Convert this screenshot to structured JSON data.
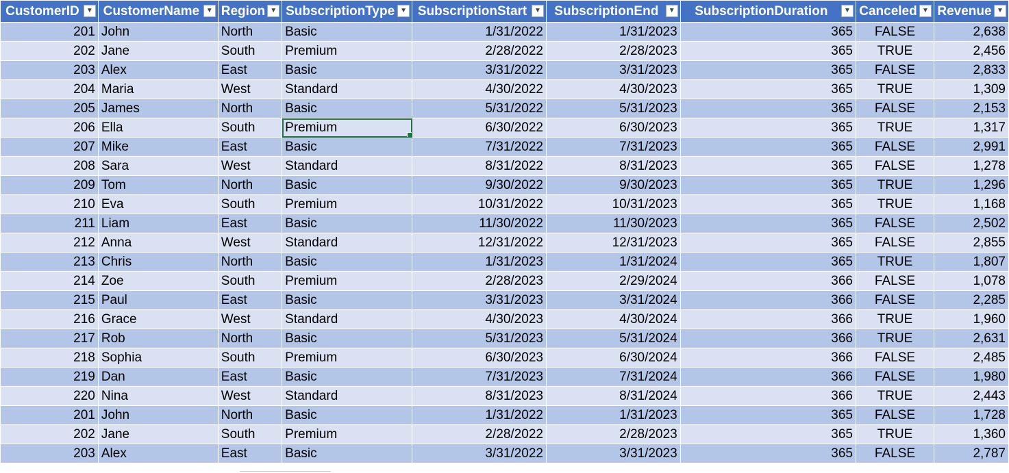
{
  "columns": [
    "CustomerID",
    "CustomerName",
    "Region",
    "SubscriptionType",
    "SubscriptionStart",
    "SubscriptionEnd",
    "SubscriptionDuration",
    "Canceled",
    "Revenue"
  ],
  "filter_icon": "dropdown-arrow-icon",
  "selected_cell": {
    "row": 5,
    "column": "SubscriptionType"
  },
  "colors": {
    "header_bg": "#4472c4",
    "header_text": "#ffffff",
    "band_dark": "#b4c6e7",
    "band_light": "#d9e1f2",
    "selection": "#217346"
  },
  "rows": [
    [
      "201",
      "John",
      "North",
      "Basic",
      "1/31/2022",
      "1/31/2023",
      "365",
      "FALSE",
      "2,638"
    ],
    [
      "202",
      "Jane",
      "South",
      "Premium",
      "2/28/2022",
      "2/28/2023",
      "365",
      "TRUE",
      "2,456"
    ],
    [
      "203",
      "Alex",
      "East",
      "Basic",
      "3/31/2022",
      "3/31/2023",
      "365",
      "FALSE",
      "2,833"
    ],
    [
      "204",
      "Maria",
      "West",
      "Standard",
      "4/30/2022",
      "4/30/2023",
      "365",
      "TRUE",
      "1,309"
    ],
    [
      "205",
      "James",
      "North",
      "Basic",
      "5/31/2022",
      "5/31/2023",
      "365",
      "FALSE",
      "2,153"
    ],
    [
      "206",
      "Ella",
      "South",
      "Premium",
      "6/30/2022",
      "6/30/2023",
      "365",
      "TRUE",
      "1,317"
    ],
    [
      "207",
      "Mike",
      "East",
      "Basic",
      "7/31/2022",
      "7/31/2023",
      "365",
      "FALSE",
      "2,991"
    ],
    [
      "208",
      "Sara",
      "West",
      "Standard",
      "8/31/2022",
      "8/31/2023",
      "365",
      "FALSE",
      "1,278"
    ],
    [
      "209",
      "Tom",
      "North",
      "Basic",
      "9/30/2022",
      "9/30/2023",
      "365",
      "TRUE",
      "1,296"
    ],
    [
      "210",
      "Eva",
      "South",
      "Premium",
      "10/31/2022",
      "10/31/2023",
      "365",
      "TRUE",
      "1,168"
    ],
    [
      "211",
      "Liam",
      "East",
      "Basic",
      "11/30/2022",
      "11/30/2023",
      "365",
      "FALSE",
      "2,502"
    ],
    [
      "212",
      "Anna",
      "West",
      "Standard",
      "12/31/2022",
      "12/31/2023",
      "365",
      "FALSE",
      "2,855"
    ],
    [
      "213",
      "Chris",
      "North",
      "Basic",
      "1/31/2023",
      "1/31/2024",
      "365",
      "TRUE",
      "1,807"
    ],
    [
      "214",
      "Zoe",
      "South",
      "Premium",
      "2/28/2023",
      "2/29/2024",
      "366",
      "FALSE",
      "1,078"
    ],
    [
      "215",
      "Paul",
      "East",
      "Basic",
      "3/31/2023",
      "3/31/2024",
      "366",
      "FALSE",
      "2,285"
    ],
    [
      "216",
      "Grace",
      "West",
      "Standard",
      "4/30/2023",
      "4/30/2024",
      "366",
      "TRUE",
      "1,960"
    ],
    [
      "217",
      "Rob",
      "North",
      "Basic",
      "5/31/2023",
      "5/31/2024",
      "366",
      "TRUE",
      "2,631"
    ],
    [
      "218",
      "Sophia",
      "South",
      "Premium",
      "6/30/2023",
      "6/30/2024",
      "366",
      "FALSE",
      "2,485"
    ],
    [
      "219",
      "Dan",
      "East",
      "Basic",
      "7/31/2023",
      "7/31/2024",
      "366",
      "FALSE",
      "1,980"
    ],
    [
      "220",
      "Nina",
      "West",
      "Standard",
      "8/31/2023",
      "8/31/2024",
      "366",
      "TRUE",
      "2,443"
    ],
    [
      "201",
      "John",
      "North",
      "Basic",
      "1/31/2022",
      "1/31/2023",
      "365",
      "FALSE",
      "1,728"
    ],
    [
      "202",
      "Jane",
      "South",
      "Premium",
      "2/28/2022",
      "2/28/2023",
      "365",
      "TRUE",
      "1,360"
    ],
    [
      "203",
      "Alex",
      "East",
      "Basic",
      "3/31/2022",
      "3/31/2023",
      "365",
      "FALSE",
      "2,787"
    ]
  ]
}
